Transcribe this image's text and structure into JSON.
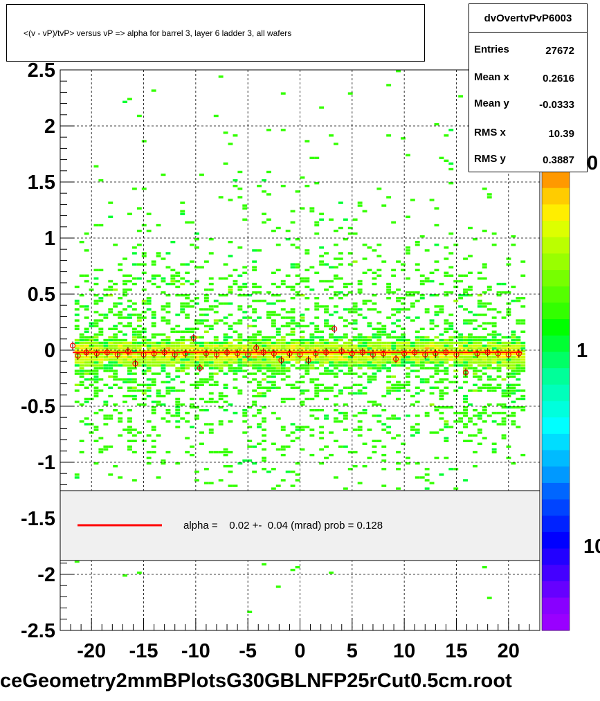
{
  "title": "<(v - vP)/tvP> versus   vP => alpha for barrel 3, layer 6 ladder 3, all wafers",
  "stats": {
    "name": "dvOvertvPvP6003",
    "rows": [
      {
        "label": "Entries",
        "value": "27672"
      },
      {
        "label": "Mean x",
        "value": "0.2616"
      },
      {
        "label": "Mean y",
        "value": "-0.0333"
      },
      {
        "label": "RMS x",
        "value": "10.39"
      },
      {
        "label": "RMS y",
        "value": "0.3887"
      }
    ]
  },
  "fit_legend": "alpha =    0.02 +-  0.04 (mrad) prob = 0.128",
  "palette_labels": [
    "0",
    "1",
    "10"
  ],
  "filename": "ceGeometry2mmBPlotsG30GBLNFP25rCut0.5cm.root",
  "colors": {
    "fit_line": "#ff0000",
    "legend_bg": "#f0f0f0",
    "profile_marker": "#ff0000"
  },
  "chart_data": {
    "type": "heatmap",
    "xlim": [
      -23,
      23
    ],
    "ylim": [
      -2.5,
      2.5
    ],
    "x_ticks": [
      -20,
      -15,
      -10,
      -5,
      0,
      5,
      10,
      15,
      20
    ],
    "y_ticks": [
      2.5,
      2,
      1.5,
      1,
      0.5,
      0,
      -0.5,
      -1,
      -1.5,
      -2,
      -2.5
    ],
    "grid": true,
    "fit": {
      "slope": 2e-05,
      "intercept": -0.02
    },
    "profile": [
      {
        "x": -21.8,
        "y": 0.04
      },
      {
        "x": -21.3,
        "y": -0.05
      },
      {
        "x": -20.5,
        "y": -0.02
      },
      {
        "x": -19.5,
        "y": -0.03
      },
      {
        "x": -18.5,
        "y": -0.02
      },
      {
        "x": -17.5,
        "y": -0.04
      },
      {
        "x": -16.5,
        "y": -0.01
      },
      {
        "x": -15.8,
        "y": -0.12
      },
      {
        "x": -15.0,
        "y": -0.04
      },
      {
        "x": -14.0,
        "y": -0.03
      },
      {
        "x": -13.0,
        "y": -0.02
      },
      {
        "x": -12.0,
        "y": -0.04
      },
      {
        "x": -11.0,
        "y": -0.03
      },
      {
        "x": -10.2,
        "y": 0.11
      },
      {
        "x": -9.6,
        "y": -0.16
      },
      {
        "x": -9.0,
        "y": -0.03
      },
      {
        "x": -8.0,
        "y": -0.04
      },
      {
        "x": -7.0,
        "y": -0.02
      },
      {
        "x": -6.0,
        "y": -0.03
      },
      {
        "x": -5.0,
        "y": -0.04
      },
      {
        "x": -4.2,
        "y": 0.02
      },
      {
        "x": -3.5,
        "y": -0.02
      },
      {
        "x": -2.5,
        "y": -0.03
      },
      {
        "x": -1.8,
        "y": -0.09
      },
      {
        "x": -1.0,
        "y": -0.03
      },
      {
        "x": 0.0,
        "y": -0.04
      },
      {
        "x": 0.8,
        "y": -0.09
      },
      {
        "x": 1.5,
        "y": -0.03
      },
      {
        "x": 2.5,
        "y": -0.02
      },
      {
        "x": 3.3,
        "y": 0.19
      },
      {
        "x": 4.0,
        "y": -0.01
      },
      {
        "x": 5.0,
        "y": -0.03
      },
      {
        "x": 6.0,
        "y": -0.02
      },
      {
        "x": 7.0,
        "y": -0.04
      },
      {
        "x": 8.0,
        "y": -0.03
      },
      {
        "x": 9.2,
        "y": -0.08
      },
      {
        "x": 10.0,
        "y": -0.03
      },
      {
        "x": 11.0,
        "y": -0.02
      },
      {
        "x": 12.0,
        "y": -0.04
      },
      {
        "x": 13.0,
        "y": -0.03
      },
      {
        "x": 14.0,
        "y": -0.02
      },
      {
        "x": 15.0,
        "y": -0.04
      },
      {
        "x": 15.9,
        "y": -0.2
      },
      {
        "x": 17.0,
        "y": -0.03
      },
      {
        "x": 18.0,
        "y": -0.02
      },
      {
        "x": 19.0,
        "y": -0.03
      },
      {
        "x": 20.0,
        "y": -0.04
      },
      {
        "x": 21.0,
        "y": -0.03
      }
    ]
  }
}
